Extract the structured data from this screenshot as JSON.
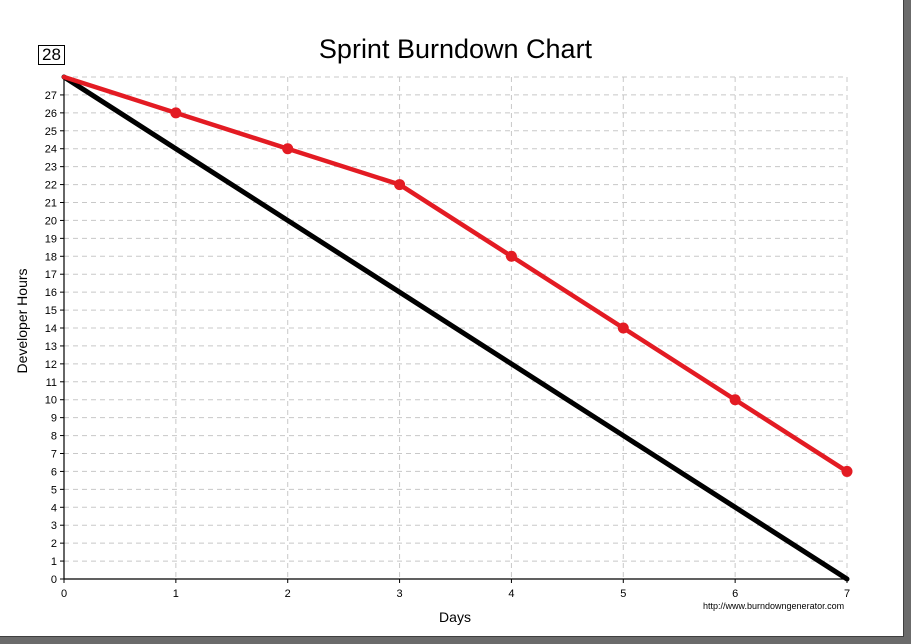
{
  "chart_data": {
    "type": "line",
    "title": "Sprint Burndown Chart",
    "xlabel": "Days",
    "ylabel": "Developer Hours",
    "x": [
      0,
      1,
      2,
      3,
      4,
      5,
      6,
      7
    ],
    "xlim": [
      0,
      7
    ],
    "ylim": [
      0,
      28
    ],
    "x_ticks": [
      "0",
      "1",
      "2",
      "3",
      "4",
      "5",
      "6",
      "7"
    ],
    "y_ticks": [
      "0",
      "1",
      "2",
      "3",
      "4",
      "5",
      "6",
      "7",
      "8",
      "9",
      "10",
      "11",
      "12",
      "13",
      "14",
      "15",
      "16",
      "17",
      "18",
      "19",
      "20",
      "21",
      "22",
      "23",
      "24",
      "25",
      "26",
      "27"
    ],
    "y_max_label": "28",
    "grid": true,
    "series": [
      {
        "values": [
          28,
          24,
          20,
          16,
          12,
          8,
          4,
          0
        ],
        "color": "#000000",
        "markers": false
      },
      {
        "values": [
          28,
          26,
          24,
          22,
          18,
          14,
          10,
          6
        ],
        "color": "#e31b23",
        "markers": true
      }
    ],
    "source_text": "http://www.burndowngenerator.com"
  }
}
